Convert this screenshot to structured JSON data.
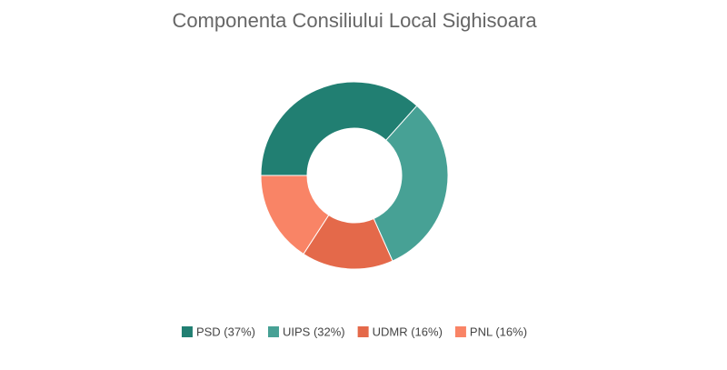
{
  "chart_data": {
    "type": "donut",
    "title": "Componenta Consiliului Local Sighisoara",
    "categories": [
      "PSD (37%)",
      "UIPS (32%)",
      "UDMR (16%)",
      "PNL (16%)"
    ],
    "values": [
      37,
      32,
      16,
      16
    ],
    "colors": [
      "#217f72",
      "#47a195",
      "#e4694a",
      "#f98466"
    ],
    "legend": "bottom"
  }
}
